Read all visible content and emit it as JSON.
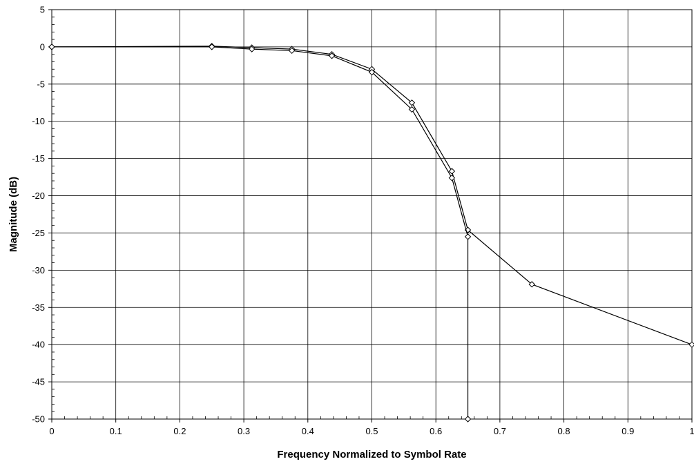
{
  "chart_data": {
    "type": "line",
    "title": "",
    "xlabel": "Frequency Normalized to Symbol Rate",
    "ylabel": "Magnitude (dB)",
    "xlim": [
      0,
      1
    ],
    "ylim": [
      -50,
      5
    ],
    "x_ticks": [
      0,
      0.1,
      0.2,
      0.3,
      0.4,
      0.5,
      0.6,
      0.7,
      0.8,
      0.9,
      1
    ],
    "x_tick_labels": [
      "0",
      "0.1",
      "0.2",
      "0.3",
      "0.4",
      "0.5",
      "0.6",
      "0.7",
      "0.8",
      "0.9",
      "1"
    ],
    "y_ticks": [
      5,
      0,
      -5,
      -10,
      -15,
      -20,
      -25,
      -30,
      -35,
      -40,
      -45,
      -50
    ],
    "y_tick_labels": [
      "5",
      "0",
      "-5",
      "-10",
      "-15",
      "-20",
      "-25",
      "-30",
      "-35",
      "-40",
      "-45",
      "-50"
    ],
    "grid": true,
    "legend": "none",
    "marker": "diamond",
    "line_color": "#000000",
    "series": [
      {
        "x": [
          0,
          0.25,
          0.3125,
          0.375,
          0.4375,
          0.5,
          0.5625,
          0.625,
          0.65,
          0.75,
          1.0
        ],
        "y": [
          0,
          0.1,
          -0.1,
          -0.3,
          -1.0,
          -3.0,
          -7.5,
          -16.7,
          -24.6,
          -31.9,
          -40.0
        ]
      },
      {
        "x": [
          0,
          0.25,
          0.3125,
          0.375,
          0.4375,
          0.5,
          0.5625,
          0.625,
          0.65,
          0.65
        ],
        "y": [
          0,
          0.0,
          -0.3,
          -0.5,
          -1.2,
          -3.4,
          -8.4,
          -17.6,
          -25.5,
          -50.0
        ]
      }
    ]
  }
}
